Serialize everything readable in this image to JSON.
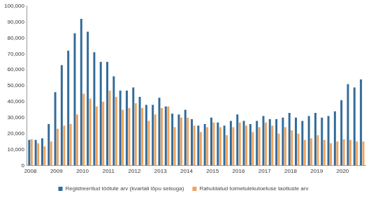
{
  "chart_data": {
    "type": "bar",
    "categories": [
      "2008",
      null,
      null,
      null,
      "2009",
      null,
      null,
      null,
      "2010",
      null,
      null,
      null,
      "2011",
      null,
      null,
      null,
      "2012",
      null,
      null,
      null,
      "2013",
      null,
      null,
      null,
      "2014",
      null,
      null,
      null,
      "2015",
      null,
      null,
      null,
      "2016",
      null,
      null,
      null,
      "2017",
      null,
      null,
      null,
      "2018",
      null,
      null,
      null,
      "2019",
      null,
      null,
      null,
      "2020",
      null,
      null,
      null
    ],
    "series": [
      {
        "name": "Registreeritud töötute arv (kvartali lõpu seisuga)",
        "color": "#336b99",
        "values": [
          16000,
          16000,
          17000,
          26000,
          46000,
          63000,
          72000,
          83000,
          92000,
          84000,
          71000,
          65000,
          65000,
          56000,
          47000,
          47000,
          49000,
          43000,
          38000,
          38000,
          42500,
          37000,
          32500,
          32000,
          35000,
          29000,
          25000,
          26000,
          30000,
          27000,
          25000,
          28000,
          32000,
          28000,
          26000,
          28000,
          31000,
          29000,
          29000,
          30000,
          33000,
          30000,
          28000,
          31000,
          33000,
          30000,
          31000,
          34000,
          41000,
          51000,
          49000,
          54000
        ]
      },
      {
        "name": "Rahuldatud toimetulekutoetuse taotluste arv",
        "color": "#f0a35e",
        "values": [
          16500,
          14000,
          12000,
          15000,
          23000,
          25000,
          26000,
          32000,
          45000,
          42000,
          37000,
          40000,
          47000,
          43000,
          35000,
          36000,
          39000,
          36000,
          28000,
          32000,
          36000,
          37000,
          24000,
          30000,
          30000,
          25000,
          21000,
          24000,
          27000,
          24000,
          19000,
          24000,
          27000,
          25000,
          21000,
          24000,
          27000,
          25000,
          20000,
          24000,
          22000,
          20000,
          16000,
          17000,
          19000,
          16000,
          14000,
          15000,
          16500,
          16000,
          15000,
          15000
        ]
      }
    ],
    "ylim": [
      0,
      100000
    ],
    "yticks": [
      0,
      {
        "value": 10000,
        "label": "10,000"
      },
      {
        "value": 20000,
        "label": "20,000"
      },
      {
        "value": 30000,
        "label": "30,000"
      },
      {
        "value": 40000,
        "label": "40,000"
      },
      {
        "value": 50000,
        "label": "50,000"
      },
      {
        "value": 60000,
        "label": "60,000"
      },
      {
        "value": 70000,
        "label": "70,000"
      },
      {
        "value": 80000,
        "label": "80,000"
      },
      {
        "value": 90000,
        "label": "90,000"
      },
      {
        "value": 100000,
        "label": "100,000"
      }
    ],
    "grid": false,
    "legend": "bottom"
  }
}
